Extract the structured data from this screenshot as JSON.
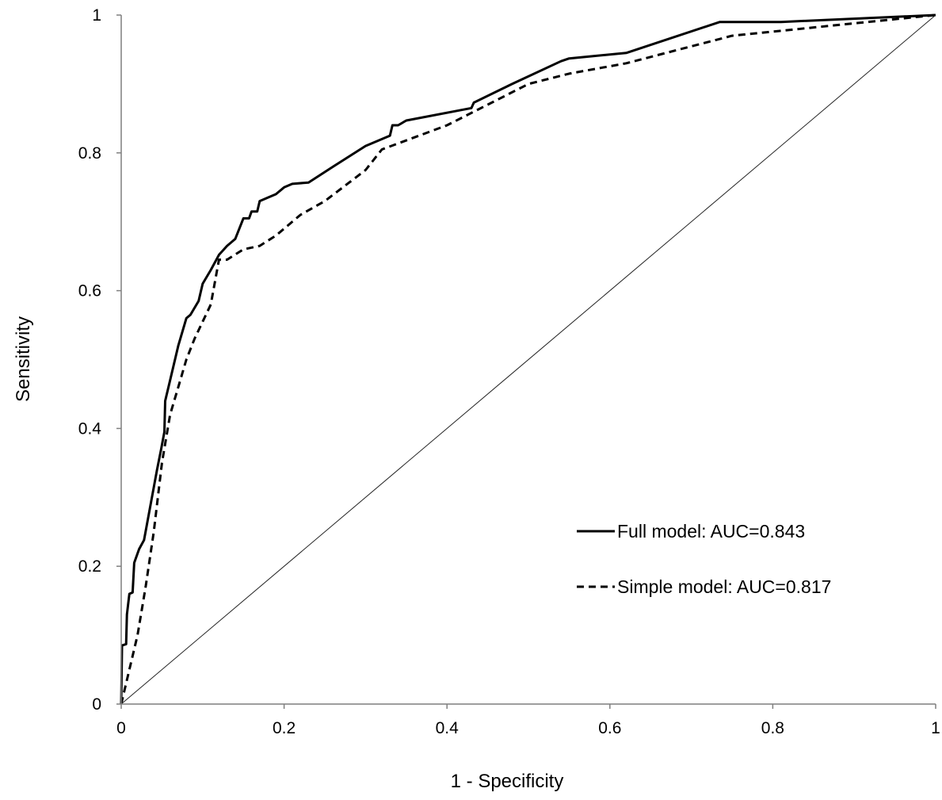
{
  "chart_data": {
    "type": "line",
    "xlabel": "1 - Specificity",
    "ylabel": "Sensitivity",
    "xlim": [
      0,
      1
    ],
    "ylim": [
      0,
      1
    ],
    "x_ticks": [
      "0",
      "0.2",
      "0.4",
      "0.6",
      "0.8",
      "1"
    ],
    "y_ticks": [
      "0",
      "0.2",
      "0.4",
      "0.6",
      "0.8",
      "1"
    ],
    "grid": false,
    "legend_position": "lower-right",
    "series": [
      {
        "name": "Full model: AUC=0.843",
        "style": "solid",
        "color": "#000000",
        "points": [
          [
            0,
            0
          ],
          [
            0.001,
            0.085
          ],
          [
            0.006,
            0.087
          ],
          [
            0.007,
            0.13
          ],
          [
            0.01,
            0.16
          ],
          [
            0.014,
            0.162
          ],
          [
            0.016,
            0.205
          ],
          [
            0.022,
            0.225
          ],
          [
            0.028,
            0.238
          ],
          [
            0.044,
            0.34
          ],
          [
            0.049,
            0.37
          ],
          [
            0.053,
            0.395
          ],
          [
            0.054,
            0.44
          ],
          [
            0.06,
            0.47
          ],
          [
            0.07,
            0.52
          ],
          [
            0.08,
            0.56
          ],
          [
            0.085,
            0.565
          ],
          [
            0.095,
            0.585
          ],
          [
            0.1,
            0.61
          ],
          [
            0.11,
            0.63
          ],
          [
            0.12,
            0.652
          ],
          [
            0.13,
            0.665
          ],
          [
            0.14,
            0.675
          ],
          [
            0.15,
            0.705
          ],
          [
            0.157,
            0.705
          ],
          [
            0.16,
            0.715
          ],
          [
            0.167,
            0.715
          ],
          [
            0.17,
            0.73
          ],
          [
            0.18,
            0.735
          ],
          [
            0.19,
            0.74
          ],
          [
            0.2,
            0.75
          ],
          [
            0.21,
            0.755
          ],
          [
            0.23,
            0.757
          ],
          [
            0.26,
            0.78
          ],
          [
            0.3,
            0.81
          ],
          [
            0.33,
            0.825
          ],
          [
            0.333,
            0.84
          ],
          [
            0.34,
            0.84
          ],
          [
            0.35,
            0.847
          ],
          [
            0.43,
            0.865
          ],
          [
            0.433,
            0.873
          ],
          [
            0.48,
            0.9
          ],
          [
            0.54,
            0.933
          ],
          [
            0.55,
            0.937
          ],
          [
            0.62,
            0.945
          ],
          [
            0.735,
            0.99
          ],
          [
            0.81,
            0.99
          ],
          [
            1,
            1
          ]
        ]
      },
      {
        "name": "Simple model: AUC=0.817",
        "style": "dashed",
        "color": "#000000",
        "points": [
          [
            0,
            0
          ],
          [
            0.01,
            0.05
          ],
          [
            0.02,
            0.1
          ],
          [
            0.03,
            0.17
          ],
          [
            0.04,
            0.25
          ],
          [
            0.05,
            0.35
          ],
          [
            0.06,
            0.42
          ],
          [
            0.07,
            0.46
          ],
          [
            0.08,
            0.5
          ],
          [
            0.09,
            0.53
          ],
          [
            0.1,
            0.555
          ],
          [
            0.11,
            0.58
          ],
          [
            0.12,
            0.645
          ],
          [
            0.13,
            0.645
          ],
          [
            0.15,
            0.66
          ],
          [
            0.17,
            0.665
          ],
          [
            0.19,
            0.68
          ],
          [
            0.2,
            0.69
          ],
          [
            0.22,
            0.71
          ],
          [
            0.25,
            0.73
          ],
          [
            0.3,
            0.775
          ],
          [
            0.32,
            0.805
          ],
          [
            0.4,
            0.84
          ],
          [
            0.45,
            0.87
          ],
          [
            0.5,
            0.9
          ],
          [
            0.55,
            0.915
          ],
          [
            0.62,
            0.93
          ],
          [
            0.75,
            0.97
          ],
          [
            1,
            1
          ]
        ]
      },
      {
        "style": "reference",
        "color": "#000000",
        "points": [
          [
            0,
            0
          ],
          [
            1,
            1
          ]
        ]
      }
    ]
  }
}
